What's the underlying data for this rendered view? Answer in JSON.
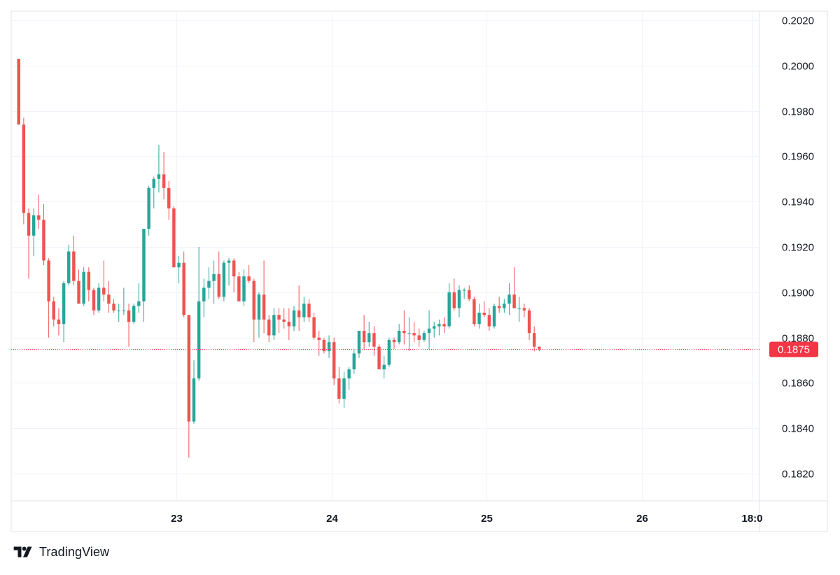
{
  "brand": {
    "name": "TradingView",
    "logo": "tradingview-logo-icon"
  },
  "colors": {
    "up": "#26a69a",
    "down": "#ef5350",
    "grid": "#f0f3fa",
    "border": "#e0e3eb",
    "axis_text": "#131722",
    "last_price_bg": "#f23645",
    "last_price_line": "#f23645"
  },
  "chart_data": {
    "type": "candlestick",
    "title": "",
    "xlabel": "",
    "ylabel": "",
    "ylim": [
      0.1808,
      0.2024
    ],
    "y_ticks": [
      "0.1820",
      "0.1840",
      "0.1860",
      "0.1880",
      "0.1900",
      "0.1920",
      "0.1940",
      "0.1960",
      "0.1980",
      "0.2000",
      "0.2020"
    ],
    "x_ticks": [
      {
        "label": "23",
        "t": 31.5
      },
      {
        "label": "24",
        "t": 62.5
      },
      {
        "label": "25",
        "t": 93.5
      },
      {
        "label": "26",
        "t": 124.5
      },
      {
        "label": "18:0",
        "t": 146.5
      }
    ],
    "t_range": [
      -1.5,
      148
    ],
    "grid": true,
    "last_price": "0.1875",
    "last_price_value": 0.1875,
    "candles": [
      [
        0,
        0.2003,
        0.2003,
        0.1974,
        0.1974
      ],
      [
        1,
        0.1974,
        0.1977,
        0.193,
        0.1935
      ],
      [
        2,
        0.1935,
        0.1937,
        0.1906,
        0.1925
      ],
      [
        3,
        0.1925,
        0.1937,
        0.1916,
        0.1934
      ],
      [
        4,
        0.1934,
        0.1943,
        0.1928,
        0.1932
      ],
      [
        5,
        0.1932,
        0.1939,
        0.1912,
        0.1914
      ],
      [
        6,
        0.1914,
        0.1915,
        0.188,
        0.1896
      ],
      [
        7,
        0.1896,
        0.1898,
        0.1885,
        0.1888
      ],
      [
        8,
        0.1888,
        0.1893,
        0.1881,
        0.1886
      ],
      [
        9,
        0.1886,
        0.1905,
        0.1878,
        0.1904
      ],
      [
        10,
        0.1904,
        0.1921,
        0.1903,
        0.1918
      ],
      [
        11,
        0.1918,
        0.1925,
        0.1903,
        0.1905
      ],
      [
        12,
        0.1905,
        0.191,
        0.1895,
        0.1895
      ],
      [
        13,
        0.1895,
        0.1911,
        0.1894,
        0.1909
      ],
      [
        14,
        0.1909,
        0.1911,
        0.1896,
        0.1901
      ],
      [
        15,
        0.1901,
        0.1902,
        0.189,
        0.1892
      ],
      [
        16,
        0.1892,
        0.1904,
        0.1891,
        0.1902
      ],
      [
        17,
        0.1902,
        0.1914,
        0.1896,
        0.1899
      ],
      [
        18,
        0.1899,
        0.1905,
        0.1891,
        0.1895
      ],
      [
        19,
        0.1895,
        0.1897,
        0.1891,
        0.1892
      ],
      [
        20,
        0.1892,
        0.1895,
        0.1887,
        0.1892
      ],
      [
        21,
        0.1892,
        0.1902,
        0.189,
        0.1892
      ],
      [
        22,
        0.1892,
        0.1895,
        0.1876,
        0.1887
      ],
      [
        23,
        0.1887,
        0.1895,
        0.1886,
        0.1894
      ],
      [
        24,
        0.1894,
        0.1904,
        0.1891,
        0.1896
      ],
      [
        25,
        0.1896,
        0.1928,
        0.1887,
        0.1928
      ],
      [
        26,
        0.1928,
        0.1947,
        0.1925,
        0.1946
      ],
      [
        27,
        0.1946,
        0.1951,
        0.1937,
        0.195
      ],
      [
        28,
        0.195,
        0.1965,
        0.1944,
        0.1952
      ],
      [
        29,
        0.1952,
        0.1962,
        0.1941,
        0.1946
      ],
      [
        30,
        0.1946,
        0.1949,
        0.1932,
        0.1937
      ],
      [
        31,
        0.1937,
        0.1938,
        0.1911,
        0.1911
      ],
      [
        32,
        0.1911,
        0.1916,
        0.1904,
        0.1913
      ],
      [
        33,
        0.1913,
        0.1918,
        0.1889,
        0.189
      ],
      [
        34,
        0.189,
        0.189,
        0.1827,
        0.1843
      ],
      [
        35,
        0.1843,
        0.187,
        0.1842,
        0.1862
      ],
      [
        36,
        0.1862,
        0.192,
        0.1861,
        0.1896
      ],
      [
        37,
        0.1896,
        0.1906,
        0.1889,
        0.1902
      ],
      [
        38,
        0.1902,
        0.1911,
        0.1897,
        0.1905
      ],
      [
        39,
        0.1905,
        0.1914,
        0.1895,
        0.1908
      ],
      [
        40,
        0.1908,
        0.1918,
        0.1897,
        0.1898
      ],
      [
        41,
        0.1898,
        0.1914,
        0.1896,
        0.1913
      ],
      [
        42,
        0.1913,
        0.1915,
        0.1903,
        0.1914
      ],
      [
        43,
        0.1914,
        0.1915,
        0.19,
        0.1907
      ],
      [
        44,
        0.1907,
        0.1909,
        0.1896,
        0.1896
      ],
      [
        45,
        0.1896,
        0.191,
        0.1894,
        0.1907
      ],
      [
        46,
        0.1907,
        0.1912,
        0.1904,
        0.1905
      ],
      [
        47,
        0.1905,
        0.1906,
        0.1878,
        0.1888
      ],
      [
        48,
        0.1888,
        0.19,
        0.188,
        0.1899
      ],
      [
        49,
        0.1899,
        0.1914,
        0.1882,
        0.1888
      ],
      [
        50,
        0.1888,
        0.189,
        0.1878,
        0.1881
      ],
      [
        51,
        0.1881,
        0.1893,
        0.1879,
        0.189
      ],
      [
        52,
        0.189,
        0.1893,
        0.1882,
        0.1888
      ],
      [
        53,
        0.1888,
        0.1893,
        0.1884,
        0.1887
      ],
      [
        54,
        0.1887,
        0.1893,
        0.1879,
        0.1885
      ],
      [
        55,
        0.1885,
        0.1894,
        0.1883,
        0.1892
      ],
      [
        56,
        0.1892,
        0.1903,
        0.1883,
        0.1889
      ],
      [
        57,
        0.1889,
        0.1898,
        0.1887,
        0.1895
      ],
      [
        58,
        0.1895,
        0.1897,
        0.1887,
        0.1889
      ],
      [
        59,
        0.1889,
        0.1891,
        0.1879,
        0.188
      ],
      [
        60,
        0.188,
        0.1883,
        0.1872,
        0.1879
      ],
      [
        61,
        0.1879,
        0.188,
        0.1873,
        0.1874
      ],
      [
        62,
        0.1874,
        0.1881,
        0.1871,
        0.1878
      ],
      [
        63,
        0.1878,
        0.188,
        0.1859,
        0.1862
      ],
      [
        64,
        0.1862,
        0.1867,
        0.1851,
        0.1853
      ],
      [
        65,
        0.1853,
        0.1865,
        0.1849,
        0.1862
      ],
      [
        66,
        0.1862,
        0.1867,
        0.1857,
        0.1866
      ],
      [
        67,
        0.1866,
        0.1875,
        0.1864,
        0.1873
      ],
      [
        68,
        0.1873,
        0.1883,
        0.1871,
        0.1883
      ],
      [
        69,
        0.1883,
        0.189,
        0.1875,
        0.1878
      ],
      [
        70,
        0.1878,
        0.1887,
        0.1876,
        0.1882
      ],
      [
        71,
        0.1882,
        0.1885,
        0.1872,
        0.1876
      ],
      [
        72,
        0.1876,
        0.1877,
        0.1866,
        0.1866
      ],
      [
        73,
        0.1866,
        0.1872,
        0.1862,
        0.1868
      ],
      [
        74,
        0.1868,
        0.188,
        0.1867,
        0.1879
      ],
      [
        75,
        0.1879,
        0.188,
        0.1875,
        0.1878
      ],
      [
        76,
        0.1878,
        0.1886,
        0.1877,
        0.1883
      ],
      [
        77,
        0.1883,
        0.1892,
        0.1877,
        0.1882
      ],
      [
        78,
        0.1882,
        0.1889,
        0.1874,
        0.1882
      ],
      [
        79,
        0.1882,
        0.1887,
        0.1878,
        0.1881
      ],
      [
        80,
        0.1881,
        0.1884,
        0.1876,
        0.1879
      ],
      [
        81,
        0.1879,
        0.1883,
        0.1878,
        0.1882
      ],
      [
        82,
        0.1882,
        0.1892,
        0.1875,
        0.1884
      ],
      [
        83,
        0.1884,
        0.1887,
        0.188,
        0.1885
      ],
      [
        84,
        0.1885,
        0.1888,
        0.1881,
        0.1886
      ],
      [
        85,
        0.1886,
        0.1889,
        0.1882,
        0.1885
      ],
      [
        86,
        0.1885,
        0.1904,
        0.1884,
        0.19
      ],
      [
        87,
        0.19,
        0.1906,
        0.1892,
        0.1893
      ],
      [
        88,
        0.1893,
        0.1903,
        0.1889,
        0.1901
      ],
      [
        89,
        0.1901,
        0.1902,
        0.1897,
        0.1901
      ],
      [
        90,
        0.1901,
        0.1903,
        0.1896,
        0.1897
      ],
      [
        91,
        0.1897,
        0.1898,
        0.1885,
        0.1886
      ],
      [
        92,
        0.1886,
        0.1895,
        0.1884,
        0.1891
      ],
      [
        93,
        0.1891,
        0.1896,
        0.1889,
        0.189
      ],
      [
        94,
        0.189,
        0.1893,
        0.1883,
        0.1885
      ],
      [
        95,
        0.1885,
        0.1895,
        0.1884,
        0.1894
      ],
      [
        96,
        0.1894,
        0.1898,
        0.1891,
        0.1893
      ],
      [
        97,
        0.1893,
        0.1897,
        0.1891,
        0.1895
      ],
      [
        98,
        0.1895,
        0.1904,
        0.189,
        0.1899
      ],
      [
        99,
        0.1899,
        0.1911,
        0.1894,
        0.1893
      ],
      [
        100,
        0.1893,
        0.1898,
        0.1887,
        0.1893
      ],
      [
        101,
        0.1893,
        0.1895,
        0.1889,
        0.1892
      ],
      [
        102,
        0.1892,
        0.1893,
        0.1879,
        0.1882
      ],
      [
        103,
        0.1882,
        0.1885,
        0.1874,
        0.1876
      ],
      [
        104,
        0.1876,
        0.1876,
        0.1874,
        0.1875
      ]
    ]
  }
}
